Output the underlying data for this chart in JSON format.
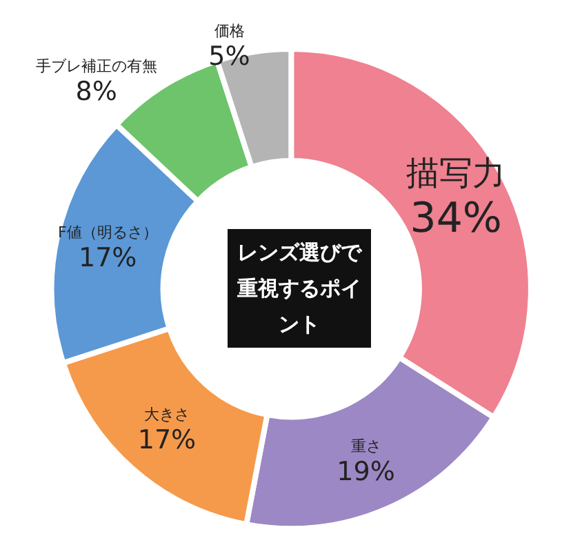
{
  "chart_data": {
    "type": "donut",
    "title": "レンズ選びで重視するポイント",
    "categories": [
      "描写力",
      "重さ",
      "大きさ",
      "F値（明るさ）",
      "手ブレ補正の有無",
      "価格"
    ],
    "values": [
      34,
      19,
      17,
      17,
      8,
      5
    ],
    "colors": [
      "#ef8190",
      "#9c88c4",
      "#f59a4b",
      "#5c98d6",
      "#6dc46b",
      "#b4b4b4"
    ],
    "value_labels": [
      "34%",
      "19%",
      "17%",
      "17%",
      "8%",
      "5%"
    ],
    "legend": false
  }
}
